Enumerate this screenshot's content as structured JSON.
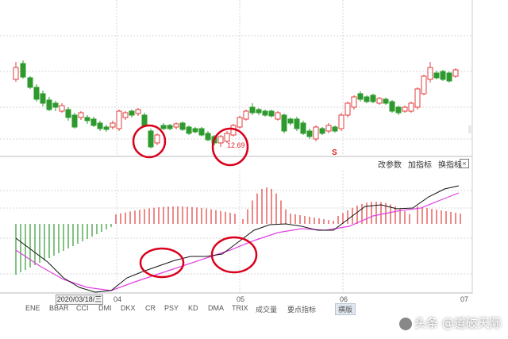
{
  "toolbar": {
    "change_params": "改参数",
    "add_indicator": "加指标",
    "swap_indicator": "换指标",
    "close": "×"
  },
  "annotations": {
    "price_label": "12.69",
    "signal_marker": "S"
  },
  "dates": {
    "selected": "2020/03/18/三",
    "months": [
      "04",
      "05",
      "06",
      "07"
    ]
  },
  "indicator_tabs": [
    "ENE",
    "BBAR",
    "CCI",
    "DMI",
    "DKX",
    "CR",
    "PSY",
    "KD",
    "DMA",
    "TRIX",
    "成交量",
    "要点指标",
    "横版"
  ],
  "watermark": "头条 @道破天际",
  "colors": {
    "up": "#e03c3c",
    "down": "#2e9a2e",
    "dif_line": "#111111",
    "dea_line": "#e040e0",
    "circle": "#d9001b"
  }
}
